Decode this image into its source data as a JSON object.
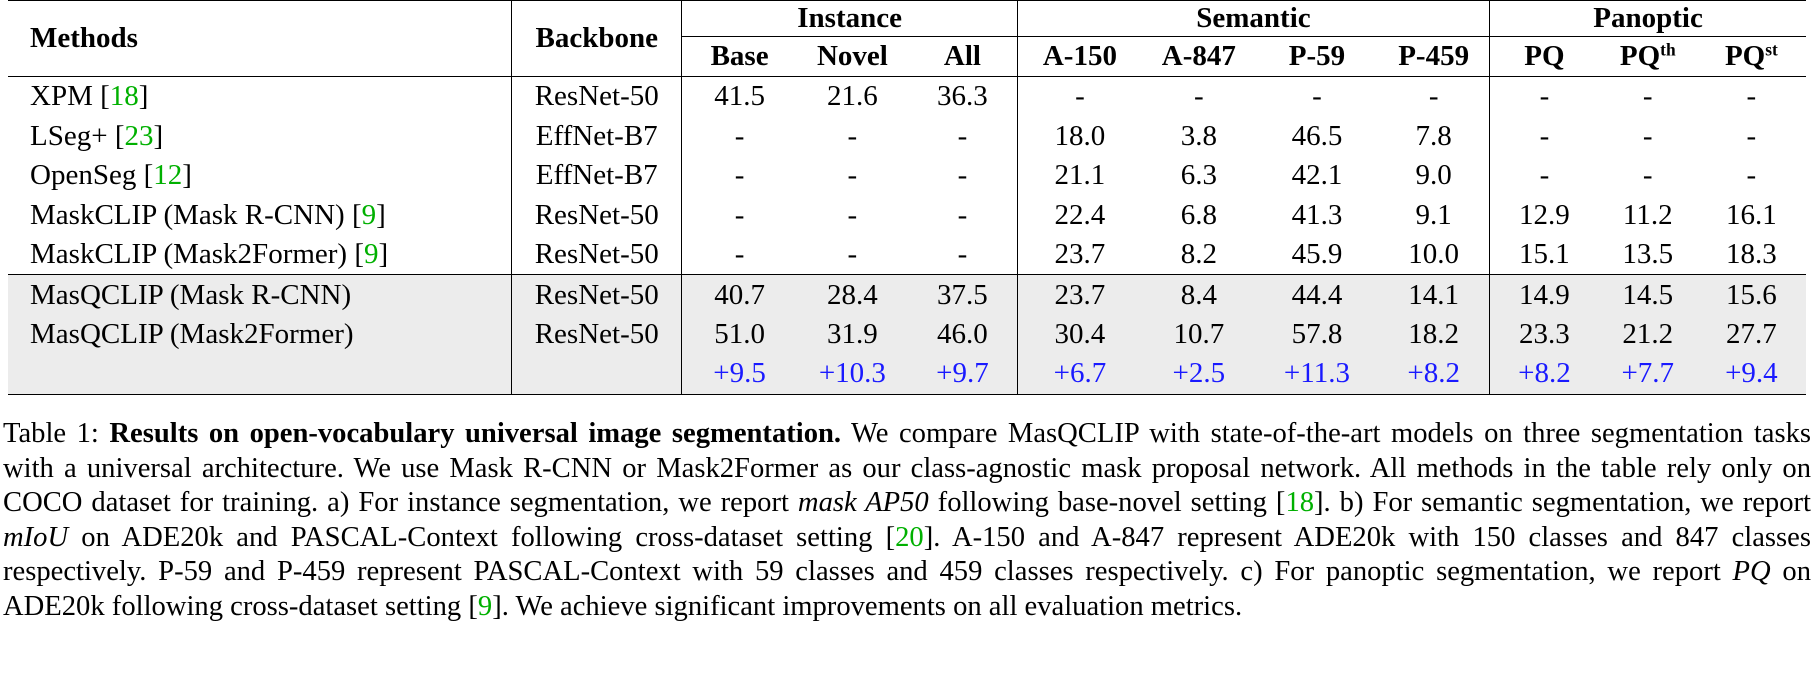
{
  "table": {
    "header": {
      "methods": "Methods",
      "backbone": "Backbone",
      "groups": [
        "Instance",
        "Semantic",
        "Panoptic"
      ],
      "instance_cols": [
        "Base",
        "Novel",
        "All"
      ],
      "semantic_cols": [
        "A-150",
        "A-847",
        "P-59",
        "P-459"
      ],
      "panoptic_cols": [
        "PQ",
        "PQ",
        "PQ"
      ],
      "panoptic_sups": [
        "",
        "th",
        "st"
      ]
    },
    "rows": [
      {
        "method": "XPM [",
        "cite": "18",
        "close": "]",
        "backbone": "ResNet-50",
        "values": [
          "41.5",
          "21.6",
          "36.3",
          "-",
          "-",
          "-",
          "-",
          "-",
          "-",
          "-"
        ]
      },
      {
        "method": "LSeg+ [",
        "cite": "23",
        "close": "]",
        "backbone": "EffNet-B7",
        "values": [
          "-",
          "-",
          "-",
          "18.0",
          "3.8",
          "46.5",
          "7.8",
          "-",
          "-",
          "-"
        ]
      },
      {
        "method": "OpenSeg [",
        "cite": "12",
        "close": "]",
        "backbone": "EffNet-B7",
        "values": [
          "-",
          "-",
          "-",
          "21.1",
          "6.3",
          "42.1",
          "9.0",
          "-",
          "-",
          "-"
        ]
      },
      {
        "method": "MaskCLIP (Mask R-CNN) [",
        "cite": "9",
        "close": "]",
        "backbone": "ResNet-50",
        "values": [
          "-",
          "-",
          "-",
          "22.4",
          "6.8",
          "41.3",
          "9.1",
          "12.9",
          "11.2",
          "16.1"
        ]
      },
      {
        "method": "MaskCLIP (Mask2Former) [",
        "cite": "9",
        "close": "]",
        "backbone": "ResNet-50",
        "values": [
          "-",
          "-",
          "-",
          "23.7",
          "8.2",
          "45.9",
          "10.0",
          "15.1",
          "13.5",
          "18.3"
        ]
      }
    ],
    "ours": [
      {
        "method": "MasQCLIP (Mask R-CNN)",
        "backbone": "ResNet-50",
        "values": [
          "40.7",
          "28.4",
          "37.5",
          "23.7",
          "8.4",
          "44.4",
          "14.1",
          "14.9",
          "14.5",
          "15.6"
        ]
      },
      {
        "method": "MasQCLIP (Mask2Former)",
        "backbone": "ResNet-50",
        "values": [
          "51.0",
          "31.9",
          "46.0",
          "30.4",
          "10.7",
          "57.8",
          "18.2",
          "23.3",
          "21.2",
          "27.7"
        ]
      }
    ],
    "gains": [
      "+9.5",
      "+10.3",
      "+9.7",
      "+6.7",
      "+2.5",
      "+11.3",
      "+8.2",
      "+8.2",
      "+7.7",
      "+9.4"
    ]
  },
  "caption": {
    "label": "Table 1: ",
    "bold": "Results on open-vocabulary universal image segmentation.",
    "t1": " We compare MasQCLIP with state-of-the-art models on three segmentation tasks with a universal architecture. We use Mask R-CNN or Mask2Former as our class-agnostic mask proposal network. All methods in the table rely only on COCO dataset for training. a) For instance segmentation, we report ",
    "em1": "mask AP50",
    "t2": " following base-novel setting [",
    "c1": "18",
    "t3": "]. b) For semantic segmentation, we report ",
    "em2": "mIoU",
    "t4": " on ADE20k and PASCAL-Context following cross-dataset setting [",
    "c2": "20",
    "t5": "]. A-150 and A-847 represent ADE20k with 150 classes and 847 classes respectively. P-59 and P-459 represent PASCAL-Context with 59 classes and 459 classes respectively. c) For panoptic segmentation, we report ",
    "em3": "PQ",
    "t6": " on ADE20k following cross-dataset setting [",
    "c3": "9",
    "t7": "]. We achieve significant improvements on all evaluation metrics."
  }
}
